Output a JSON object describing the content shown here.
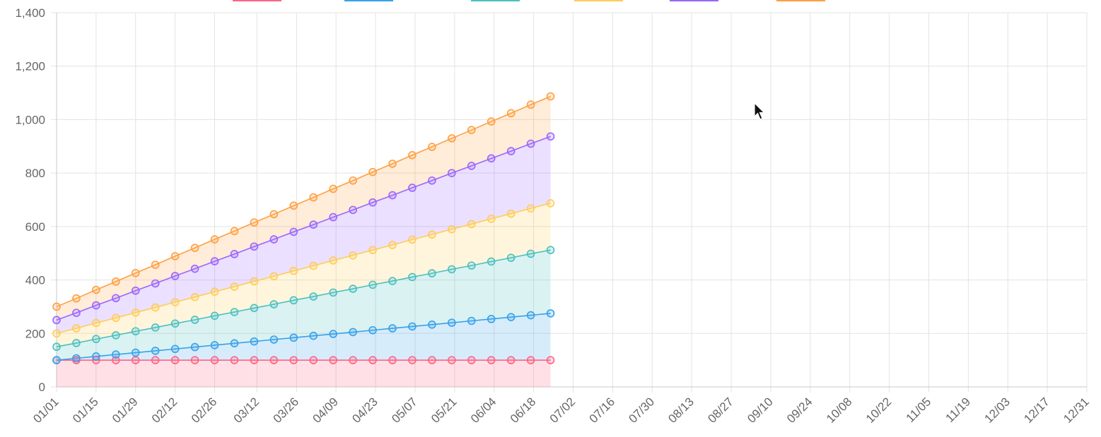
{
  "chart_data": {
    "type": "area",
    "stacked": true,
    "x_start": "2024-01-01",
    "x_end": "2024-12-31",
    "x_ticks": [
      "01/01",
      "01/15",
      "01/29",
      "02/12",
      "02/26",
      "03/12",
      "03/26",
      "04/09",
      "04/23",
      "05/07",
      "05/21",
      "06/04",
      "06/18",
      "07/02",
      "07/16",
      "07/30",
      "08/13",
      "08/27",
      "09/10",
      "09/24",
      "10/08",
      "10/22",
      "11/05",
      "11/19",
      "12/03",
      "12/17",
      "12/31"
    ],
    "ylim": [
      0,
      1400
    ],
    "y_ticks": [
      "0",
      "200",
      "400",
      "600",
      "800",
      "1,000",
      "1,200",
      "1,400"
    ],
    "y_tick_values": [
      0,
      200,
      400,
      600,
      800,
      1000,
      1200,
      1400
    ],
    "grid": true,
    "legend_position": "top",
    "x": [
      "2024-01-01",
      "2024-01-08",
      "2024-01-15",
      "2024-01-22",
      "2024-01-29",
      "2024-02-05",
      "2024-02-12",
      "2024-02-19",
      "2024-02-26",
      "2024-03-04",
      "2024-03-11",
      "2024-03-18",
      "2024-03-25",
      "2024-04-01",
      "2024-04-08",
      "2024-04-15",
      "2024-04-22",
      "2024-04-29",
      "2024-05-06",
      "2024-05-13",
      "2024-05-20",
      "2024-05-27",
      "2024-06-03",
      "2024-06-10",
      "2024-06-17",
      "2024-06-24"
    ],
    "series": [
      {
        "color": "#ff6384",
        "fill": "rgba(255,99,132,0.2)",
        "values": [
          100,
          100,
          100,
          100,
          100,
          100,
          100,
          100,
          100,
          100,
          100,
          100,
          100,
          100,
          100,
          100,
          100,
          100,
          100,
          100,
          100,
          100,
          100,
          100,
          100,
          100
        ]
      },
      {
        "color": "#36a2eb",
        "fill": "rgba(54,162,235,0.2)",
        "values": [
          0,
          7,
          14,
          21,
          28,
          35,
          42,
          49,
          56,
          63,
          70,
          77,
          84,
          91,
          98,
          105,
          112,
          119,
          126,
          133,
          140,
          147,
          154,
          161,
          168,
          175
        ]
      },
      {
        "color": "#4bc0c0",
        "fill": "rgba(75,192,192,0.2)",
        "values": [
          50,
          57,
          65,
          72,
          80,
          87,
          95,
          102,
          110,
          117,
          125,
          132,
          140,
          147,
          155,
          162,
          170,
          177,
          185,
          192,
          200,
          207,
          215,
          222,
          230,
          237
        ]
      },
      {
        "color": "#ffcd56",
        "fill": "rgba(255,205,86,0.2)",
        "values": [
          50,
          55,
          60,
          65,
          70,
          75,
          80,
          85,
          90,
          95,
          100,
          105,
          110,
          115,
          120,
          125,
          130,
          135,
          140,
          145,
          150,
          155,
          160,
          165,
          170,
          175
        ]
      },
      {
        "color": "#9966ff",
        "fill": "rgba(153,102,255,0.2)",
        "values": [
          50,
          58,
          66,
          74,
          82,
          90,
          98,
          106,
          114,
          122,
          130,
          138,
          146,
          154,
          162,
          170,
          178,
          186,
          194,
          202,
          210,
          218,
          226,
          234,
          242,
          250
        ]
      },
      {
        "color": "#ff9f40",
        "fill": "rgba(255,159,64,0.2)",
        "values": [
          50,
          54,
          58,
          62,
          66,
          70,
          74,
          78,
          82,
          86,
          90,
          94,
          98,
          102,
          106,
          110,
          114,
          118,
          122,
          126,
          130,
          134,
          138,
          142,
          146,
          150
        ]
      }
    ]
  },
  "cursor": {
    "icon": "mouse-pointer-icon"
  }
}
